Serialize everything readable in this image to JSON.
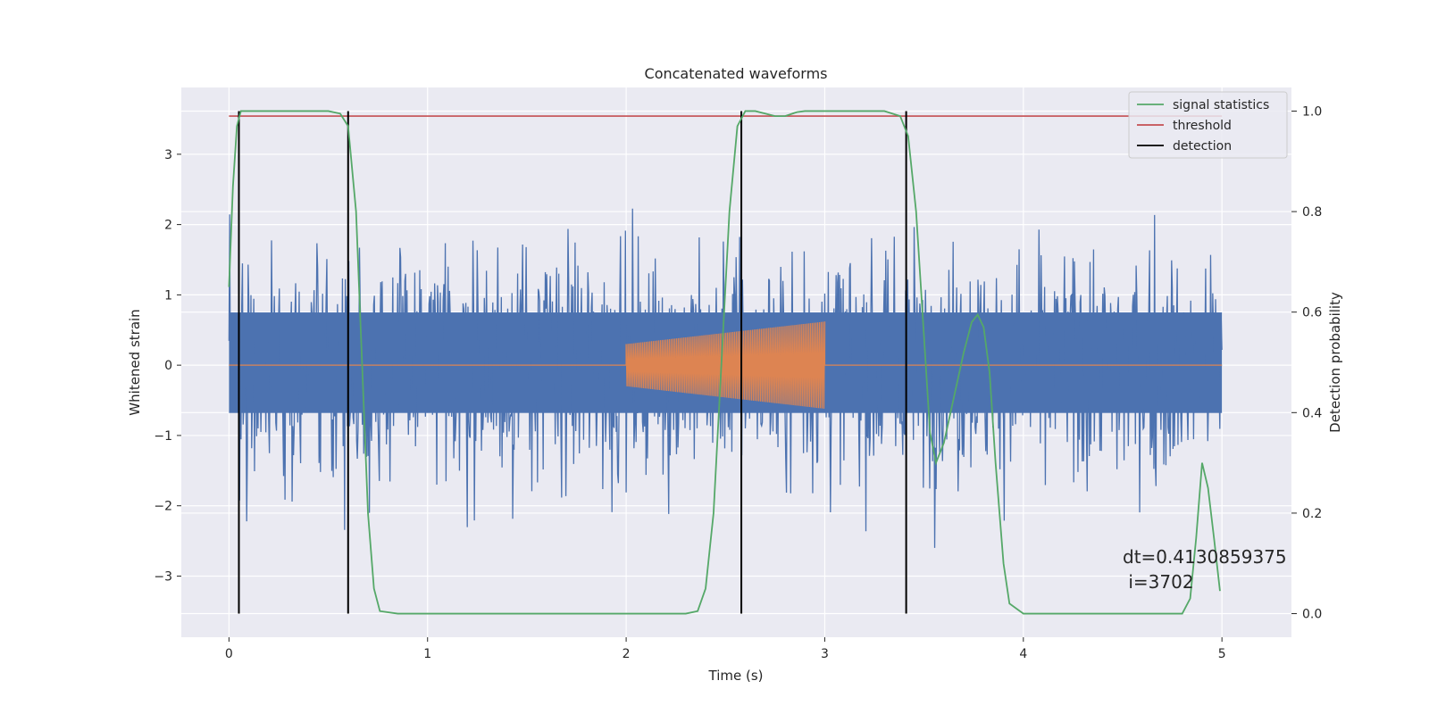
{
  "chart_data": {
    "type": "line",
    "title": "Concatenated waveforms",
    "xlabel": "Time (s)",
    "ylabel": "Whitened strain",
    "ylabel_right": "Detection probability",
    "xlim": [
      -0.24,
      5.35
    ],
    "ylim": [
      -3.87,
      3.95
    ],
    "ylim_right": [
      -0.047,
      1.047
    ],
    "x_ticks": [
      0,
      1,
      2,
      3,
      4,
      5
    ],
    "y_ticks": [
      -3,
      -2,
      -1,
      0,
      1,
      2,
      3
    ],
    "y_ticks_right": [
      0.0,
      0.2,
      0.4,
      0.6,
      0.8,
      1.0
    ],
    "y_ticks_right_labels": [
      "0.0",
      "0.2",
      "0.4",
      "0.6",
      "0.8",
      "1.0"
    ],
    "grid": true,
    "legend_position": "top-right",
    "strain_range": [
      0,
      5
    ],
    "injected_signal": {
      "t_start": 2.0,
      "t_end": 3.0,
      "amplitude_start": 0.3,
      "amplitude_end": 0.62,
      "color": "#dd8452"
    },
    "series": [
      {
        "name": "signal statistics",
        "axis": "right",
        "color": "#55a868",
        "x": [
          0.0,
          0.02,
          0.04,
          0.06,
          0.08,
          0.12,
          0.3,
          0.5,
          0.56,
          0.6,
          0.64,
          0.67,
          0.7,
          0.73,
          0.76,
          0.85,
          1.5,
          2.0,
          2.3,
          2.36,
          2.4,
          2.44,
          2.48,
          2.52,
          2.56,
          2.6,
          2.65,
          2.7,
          2.75,
          2.8,
          2.86,
          2.9,
          3.0,
          3.3,
          3.38,
          3.42,
          3.46,
          3.5,
          3.53,
          3.56,
          3.6,
          3.65,
          3.7,
          3.74,
          3.77,
          3.8,
          3.83,
          3.86,
          3.9,
          3.93,
          4.0,
          4.5,
          4.8,
          4.84,
          4.87,
          4.9,
          4.93,
          4.96,
          4.99
        ],
        "y": [
          0.65,
          0.85,
          0.97,
          1.0,
          1.0,
          1.0,
          1.0,
          1.0,
          0.995,
          0.97,
          0.8,
          0.5,
          0.2,
          0.05,
          0.005,
          0.0,
          0.0,
          0.0,
          0.0,
          0.005,
          0.05,
          0.2,
          0.5,
          0.8,
          0.97,
          1.0,
          1.0,
          0.995,
          0.99,
          0.99,
          0.998,
          1.0,
          1.0,
          1.0,
          0.99,
          0.95,
          0.8,
          0.55,
          0.36,
          0.3,
          0.34,
          0.43,
          0.52,
          0.58,
          0.595,
          0.57,
          0.48,
          0.3,
          0.1,
          0.02,
          0.0,
          0.0,
          0.0,
          0.03,
          0.15,
          0.3,
          0.25,
          0.15,
          0.045
        ]
      },
      {
        "name": "threshold",
        "axis": "right",
        "color": "#c44e52",
        "x": [
          0,
          5
        ],
        "y": [
          0.99,
          0.99
        ]
      },
      {
        "name": "detection",
        "axis": "right",
        "color": "#000000",
        "x": [
          0.05,
          0.6,
          2.58,
          3.41
        ],
        "y_range": [
          0.0,
          1.0
        ]
      }
    ],
    "annotation": {
      "line1": "dt=0.4130859375",
      "line2": " i=3702"
    }
  }
}
